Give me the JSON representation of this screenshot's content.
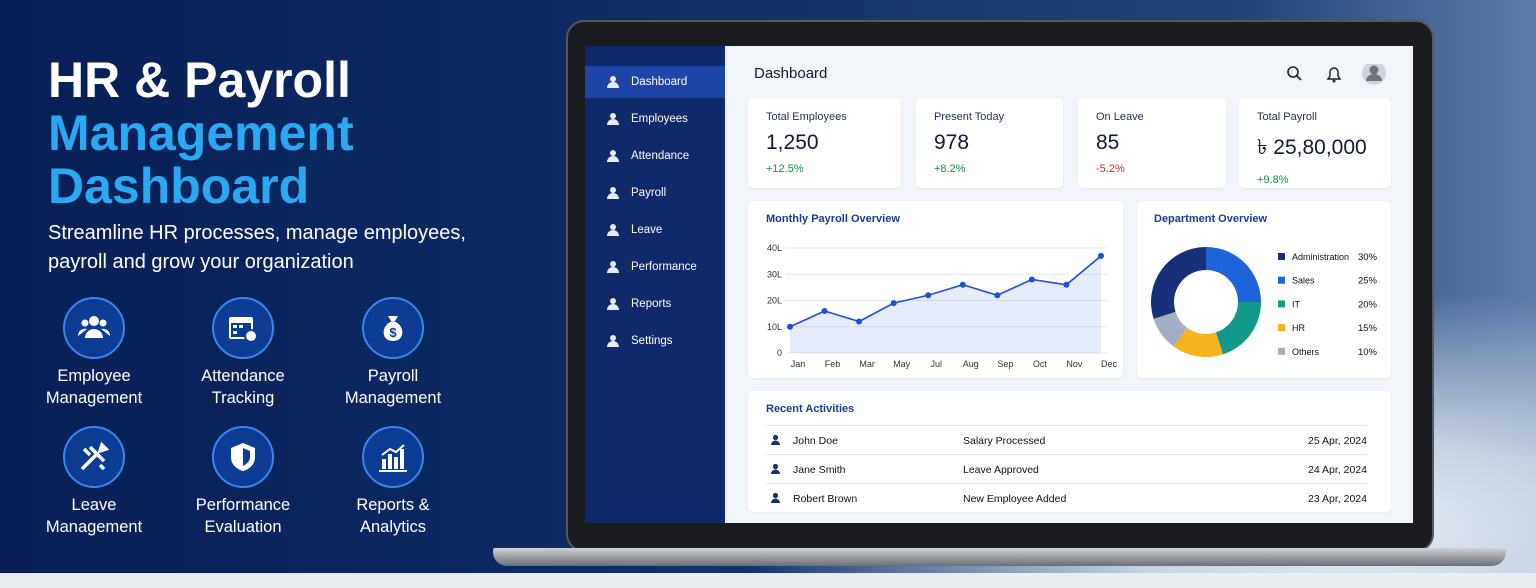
{
  "hero": {
    "title_line1": "HR & Payroll",
    "title_line2": "Management",
    "title_line3": "Dashboard",
    "subtitle": "Streamline HR processes, manage employees, payroll and grow your organization"
  },
  "features": [
    {
      "label": "Employee Management"
    },
    {
      "label": "Attendance Tracking"
    },
    {
      "label": "Payroll Management"
    },
    {
      "label": "Leave Management"
    },
    {
      "label": "Performance Evaluation"
    },
    {
      "label": "Reports & Analytics"
    }
  ],
  "sidebar": {
    "items": [
      "Dashboard",
      "Employees",
      "Attendance",
      "Payroll",
      "Leave",
      "Performance",
      "Reports",
      "Settings"
    ]
  },
  "header": {
    "title": "Dashboard"
  },
  "stats": [
    {
      "label": "Total Employees",
      "value": "1,250",
      "change": "+12.5%"
    },
    {
      "label": "Present Today",
      "value": "978",
      "change": "+8.2%"
    },
    {
      "label": "On Leave",
      "value": "85",
      "change": "-5.2%"
    },
    {
      "label": "Total Payroll",
      "value": "৳ 25,80,000",
      "change": "+9.8%"
    }
  ],
  "payroll_chart": {
    "type": "line",
    "title": "Monthly Payroll Overview",
    "categories": [
      "Jan",
      "Feb",
      "Mar",
      "May",
      "Jul",
      "Aug",
      "Sep",
      "Oct",
      "Nov",
      "Dec"
    ],
    "values": [
      10,
      16,
      12,
      19,
      22,
      26,
      22,
      28,
      26,
      37
    ],
    "color": "#1d4ed8",
    "ylim": [
      0,
      40
    ],
    "yticks": [
      0,
      {
        "value": 10,
        "label": "10L"
      },
      {
        "value": 20,
        "label": "20L"
      },
      {
        "value": 30,
        "label": "30L"
      },
      {
        "value": 40,
        "label": "40L"
      }
    ],
    "grid": true
  },
  "department_chart": {
    "type": "pie",
    "title": "Department Overview",
    "categories": [
      "Administration",
      "Sales",
      "IT",
      "HR",
      "Others"
    ],
    "values": [
      30,
      25,
      20,
      15,
      10
    ],
    "value_labels": [
      "30%",
      "25%",
      "20%",
      "15%",
      "10%"
    ],
    "colors": [
      "#16307a",
      "#1f63d8",
      "#11998a",
      "#f5b41e",
      "#a3aec2"
    ]
  },
  "activities": {
    "title": "Recent Activities",
    "rows": [
      {
        "name": "John Doe",
        "action": "Salary Processed",
        "date": "25 Apr, 2024"
      },
      {
        "name": "Jane Smith",
        "action": "Leave Approved",
        "date": "24 Apr, 2024"
      },
      {
        "name": "Robert Brown",
        "action": "New Employee Added",
        "date": "23 Apr, 2024"
      }
    ]
  }
}
